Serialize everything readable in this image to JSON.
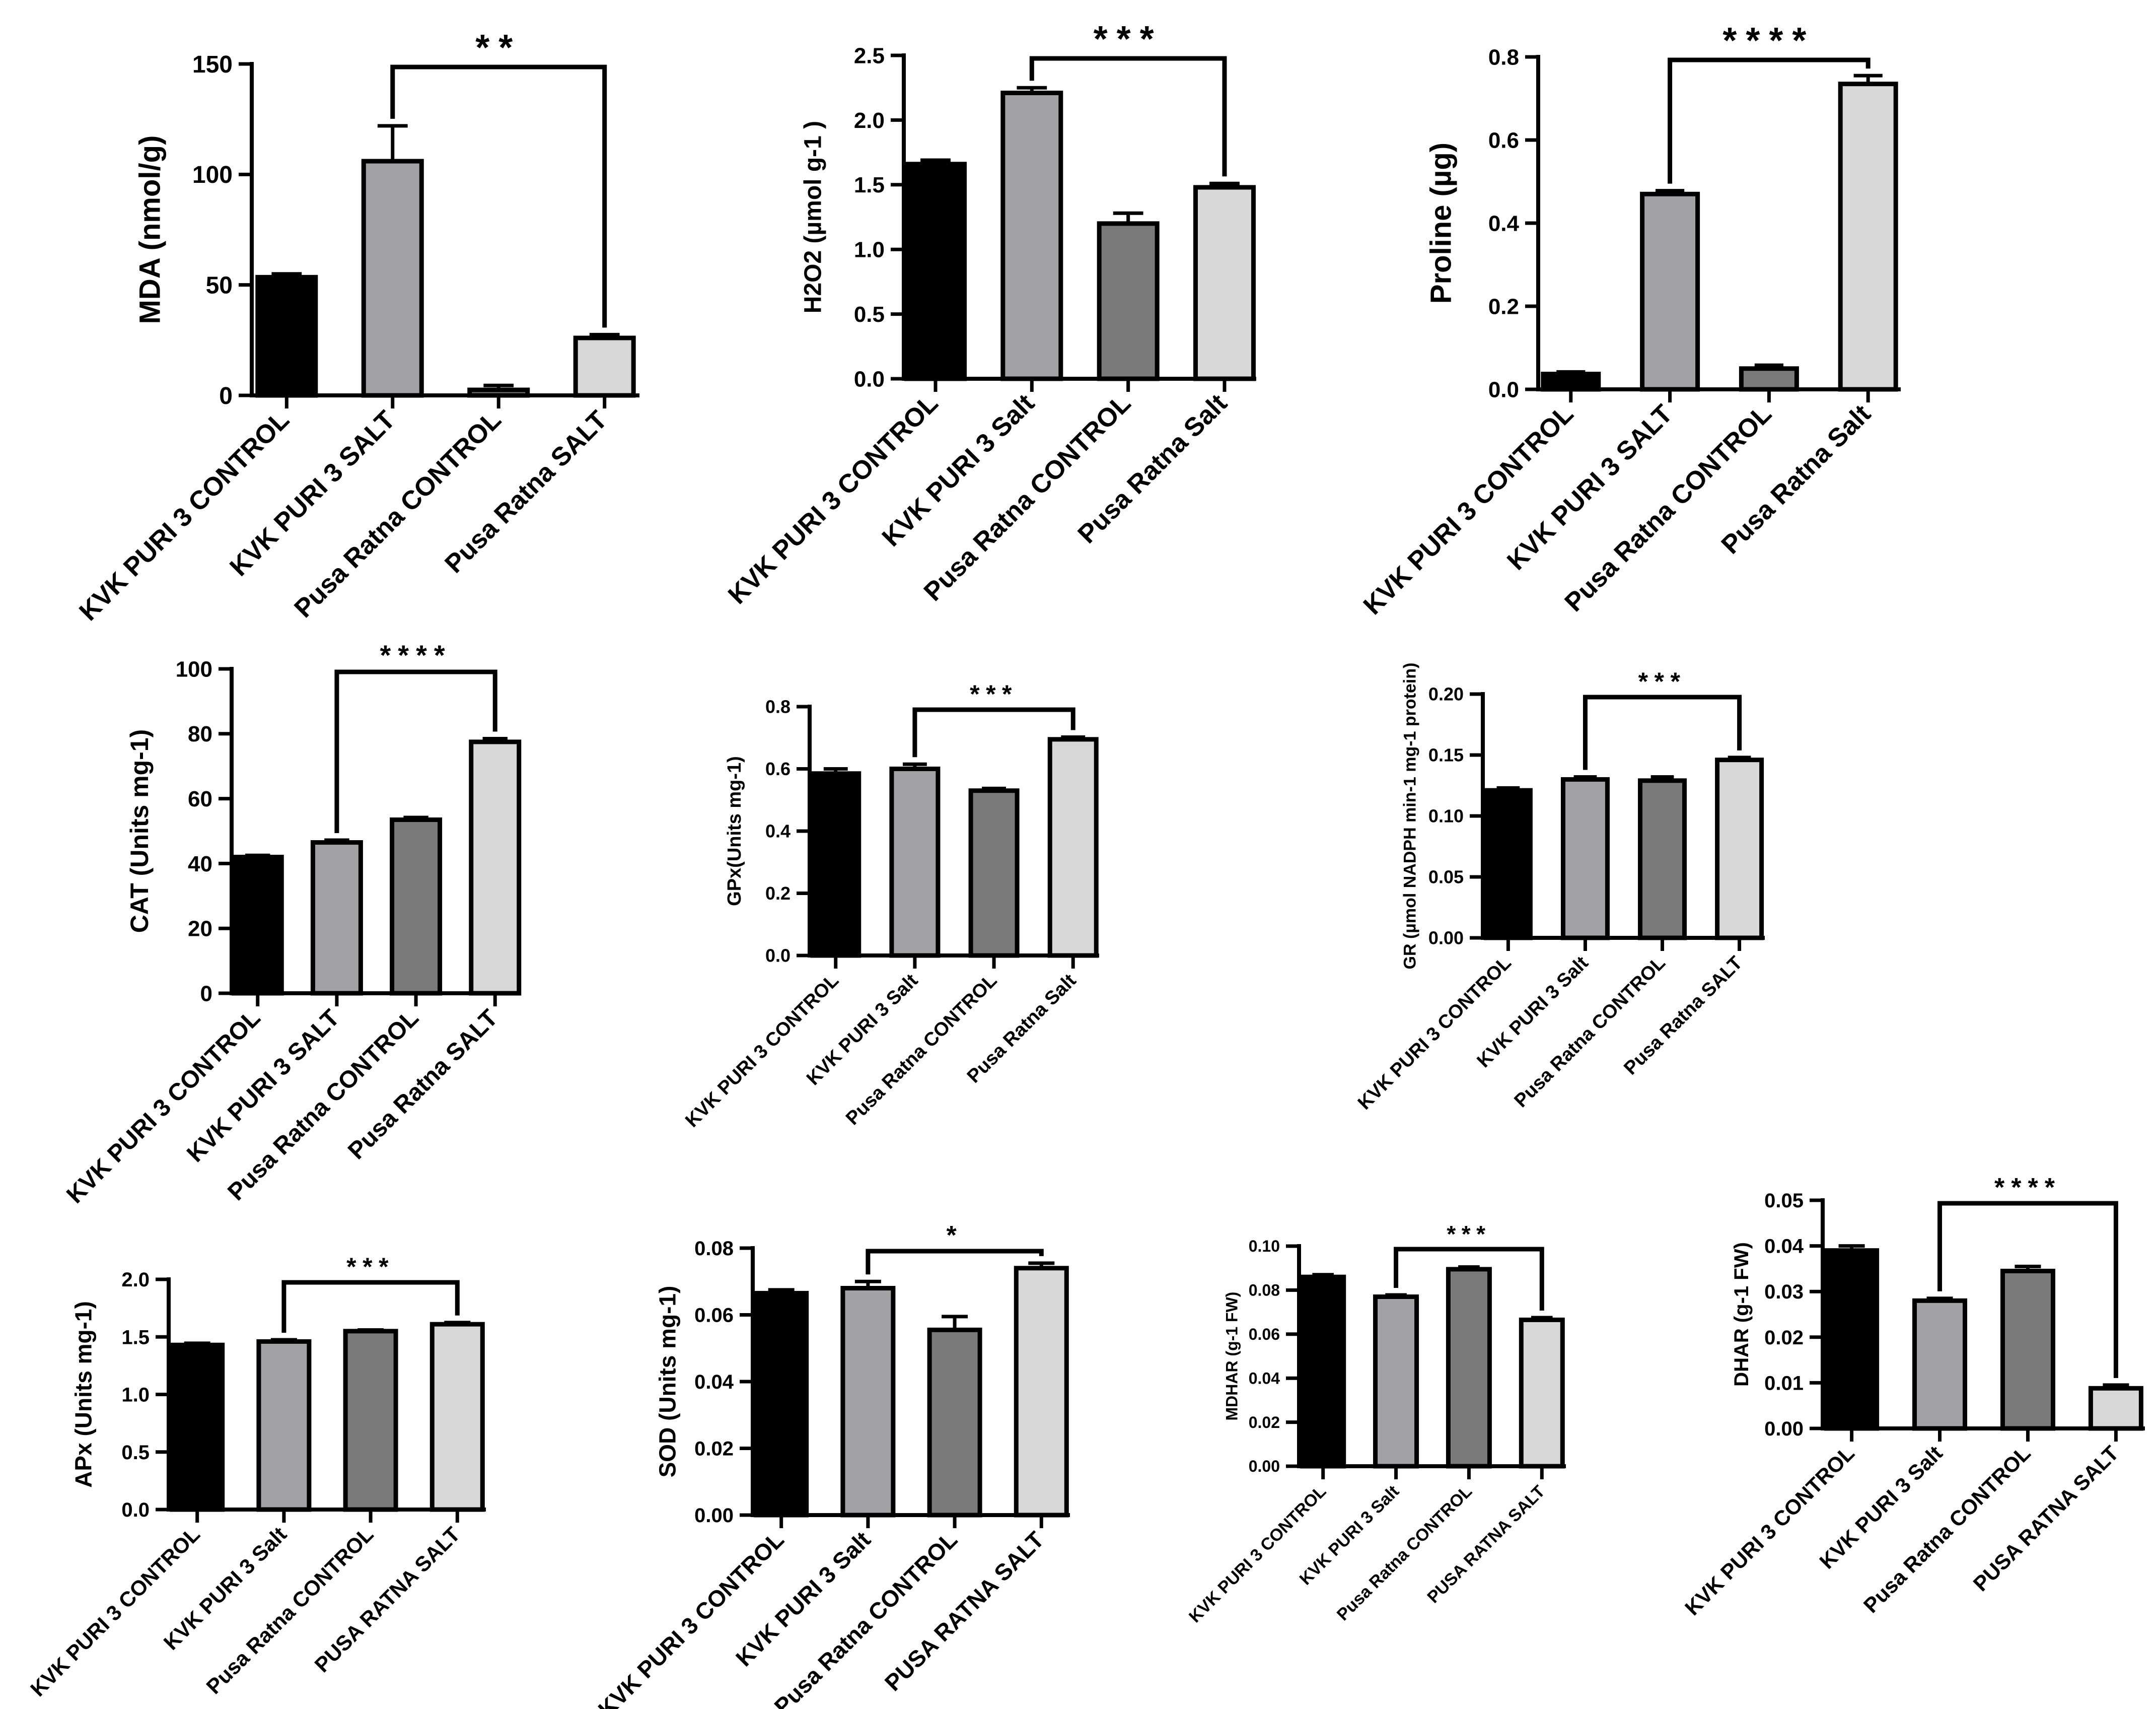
{
  "chart_data": [
    {
      "type": "bar",
      "ylabel": "MDA (nmol/g)",
      "categories": [
        "KVK PURI 3 CONTROL",
        "KVK PURI 3 SALT",
        "Pusa Ratna CONTROL",
        "Pusa Ratna SALT"
      ],
      "values": [
        53.5,
        106,
        2.5,
        26
      ],
      "errors": [
        1.5,
        16,
        2,
        1.5
      ],
      "ylim": [
        0,
        150
      ],
      "yticks": [
        "0",
        "50",
        "100",
        "150"
      ],
      "significance": {
        "from": 1,
        "to": 3,
        "label": "**"
      }
    },
    {
      "type": "bar",
      "ylabel": "H2O2 (µmol g-1 )",
      "categories": [
        "KVK PURI 3 CONTROL",
        "KVK PURI 3 Salt",
        "Pusa Ratna CONTROL",
        "Pusa Ratna Salt"
      ],
      "values": [
        1.66,
        2.21,
        1.2,
        1.48
      ],
      "errors": [
        0.03,
        0.04,
        0.08,
        0.03
      ],
      "ylim": [
        0,
        2.5
      ],
      "yticks": [
        "0.0",
        "0.5",
        "1.0",
        "1.5",
        "2.0",
        "2.5"
      ],
      "significance": {
        "from": 1,
        "to": 3,
        "label": "***"
      }
    },
    {
      "type": "bar",
      "ylabel": "Proline (µg)",
      "categories": [
        "KVK PURI 3 CONTROL",
        "KVK PURI 3 SALT",
        "Pusa Ratna CONTROL",
        "Pusa Ratna Salt"
      ],
      "values": [
        0.037,
        0.47,
        0.05,
        0.735
      ],
      "errors": [
        0.005,
        0.008,
        0.008,
        0.02
      ],
      "ylim": [
        0,
        0.8
      ],
      "yticks": [
        "0.0",
        "0.2",
        "0.4",
        "0.6",
        "0.8"
      ],
      "significance": {
        "from": 1,
        "to": 3,
        "label": "****"
      }
    },
    {
      "type": "bar",
      "ylabel": "CAT (Units mg-1)",
      "categories": [
        "KVK PURI 3 CONTROL",
        "KVK PURI 3 SALT",
        "Pusa Ratna CONTROL",
        "Pusa Ratna SALT"
      ],
      "values": [
        42,
        46.5,
        53.5,
        77.5
      ],
      "errors": [
        0.5,
        0.7,
        0.7,
        1
      ],
      "ylim": [
        0,
        100
      ],
      "yticks": [
        "0",
        "20",
        "40",
        "60",
        "80",
        "100"
      ],
      "significance": {
        "from": 1,
        "to": 3,
        "label": "****"
      }
    },
    {
      "type": "bar",
      "ylabel": "GPx(Units mg-1)",
      "categories": [
        "KVK PURI 3 CONTROL",
        "KVK PURI 3 Salt",
        "Pusa Ratna CONTROL",
        "Pusa Ratna Salt"
      ],
      "values": [
        0.585,
        0.6,
        0.53,
        0.695
      ],
      "errors": [
        0.015,
        0.015,
        0.007,
        0.007
      ],
      "ylim": [
        0,
        0.8
      ],
      "yticks": [
        "0.0",
        "0.2",
        "0.4",
        "0.6",
        "0.8"
      ],
      "significance": {
        "from": 1,
        "to": 3,
        "label": "***"
      }
    },
    {
      "type": "bar",
      "ylabel": "GR (µmol NADPH min-1 mg-1 protein)",
      "categories": [
        "KVK PURI 3 CONTROL",
        "KVK PURI 3 Salt",
        "Pusa Ratna CONTROL",
        "Pusa Ratna SALT"
      ],
      "values": [
        0.121,
        0.13,
        0.129,
        0.146
      ],
      "errors": [
        0.002,
        0.002,
        0.003,
        0.002
      ],
      "ylim": [
        0,
        0.2
      ],
      "yticks": [
        "0.00",
        "0.05",
        "0.10",
        "0.15",
        "0.20"
      ],
      "significance": {
        "from": 1,
        "to": 3,
        "label": "***"
      }
    },
    {
      "type": "bar",
      "ylabel": "APx (Units mg-1)",
      "categories": [
        "KVK PURI 3 CONTROL",
        "KVK PURI 3 Salt",
        "Pusa Ratna CONTROL",
        "PUSA RATNA SALT"
      ],
      "values": [
        1.43,
        1.46,
        1.55,
        1.61
      ],
      "errors": [
        0.015,
        0.015,
        0.01,
        0.015
      ],
      "ylim": [
        0,
        2.0
      ],
      "yticks": [
        "0.0",
        "0.5",
        "1.0",
        "1.5",
        "2.0"
      ],
      "significance": {
        "from": 1,
        "to": 3,
        "label": "***"
      }
    },
    {
      "type": "bar",
      "ylabel": "SOD (Units mg-1)",
      "categories": [
        "KVK PURI 3 CONTROL",
        "KVK PURI 3 Salt",
        "Pusa Ratna CONTROL",
        "PUSA RATNA SALT"
      ],
      "values": [
        0.0665,
        0.068,
        0.0555,
        0.074
      ],
      "errors": [
        0.001,
        0.002,
        0.004,
        0.0015
      ],
      "ylim": [
        0,
        0.08
      ],
      "yticks": [
        "0.00",
        "0.02",
        "0.04",
        "0.06",
        "0.08"
      ],
      "significance": {
        "from": 1,
        "to": 3,
        "label": "*"
      }
    },
    {
      "type": "bar",
      "ylabel": "MDHAR (g-1 FW)",
      "categories": [
        "KVK PURI 3 CONTROL",
        "KVK PURI 3 Salt",
        "Pusa Ratna CONTROL",
        "PUSA RATNA SALT"
      ],
      "values": [
        0.086,
        0.077,
        0.0895,
        0.0665
      ],
      "errors": [
        0.001,
        0.0008,
        0.001,
        0.001
      ],
      "ylim": [
        0,
        0.1
      ],
      "yticks": [
        "0.00",
        "0.02",
        "0.04",
        "0.06",
        "0.08",
        "0.10"
      ],
      "significance": {
        "from": 1,
        "to": 3,
        "label": "***"
      }
    },
    {
      "type": "bar",
      "ylabel": "DHAR (g-1 FW)",
      "categories": [
        "KVK PURI 3 CONTROL",
        "KVK PURI 3 Salt",
        "Pusa Ratna CONTROL",
        "PUSA RATNA SALT"
      ],
      "values": [
        0.039,
        0.028,
        0.0345,
        0.0088
      ],
      "errors": [
        0.001,
        0.0005,
        0.001,
        0.0007
      ],
      "ylim": [
        0,
        0.05
      ],
      "yticks": [
        "0.00",
        "0.01",
        "0.02",
        "0.03",
        "0.04",
        "0.05"
      ],
      "significance": {
        "from": 1,
        "to": 3,
        "label": "****"
      }
    }
  ],
  "colors": {
    "bars": [
      "#000000",
      "#a1a1a6",
      "#7a7a7a",
      "#d8d8d8"
    ],
    "axis": "#000000"
  }
}
